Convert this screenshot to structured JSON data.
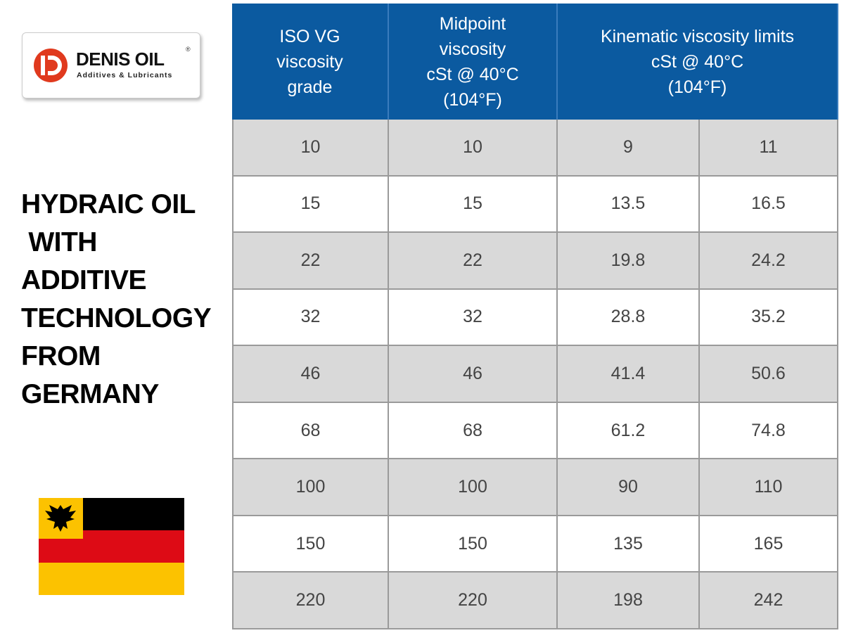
{
  "logo": {
    "name": "DENIS OIL",
    "registered": "®",
    "tagline": "Additives & Lubricants"
  },
  "headline": [
    "HYDRAIC OIL",
    " WITH",
    "ADDITIVE",
    "TECHNOLOGY",
    "FROM",
    "GERMANY"
  ],
  "table": {
    "header": [
      [
        "ISO VG",
        "viscosity",
        "grade"
      ],
      [
        "Midpoint",
        "viscosity",
        "cSt @ 40°C",
        "(104°F)"
      ],
      [
        "Kinematic viscosity limits",
        "cSt @ 40°C",
        "(104°F)"
      ]
    ],
    "rows": [
      [
        "10",
        "10",
        "9",
        "11"
      ],
      [
        "15",
        "15",
        "13.5",
        "16.5"
      ],
      [
        "22",
        "22",
        "19.8",
        "24.2"
      ],
      [
        "32",
        "32",
        "28.8",
        "35.2"
      ],
      [
        "46",
        "46",
        "41.4",
        "50.6"
      ],
      [
        "68",
        "68",
        "61.2",
        "74.8"
      ],
      [
        "100",
        "100",
        "90",
        "110"
      ],
      [
        "150",
        "150",
        "135",
        "165"
      ],
      [
        "220",
        "220",
        "198",
        "242"
      ]
    ]
  }
}
